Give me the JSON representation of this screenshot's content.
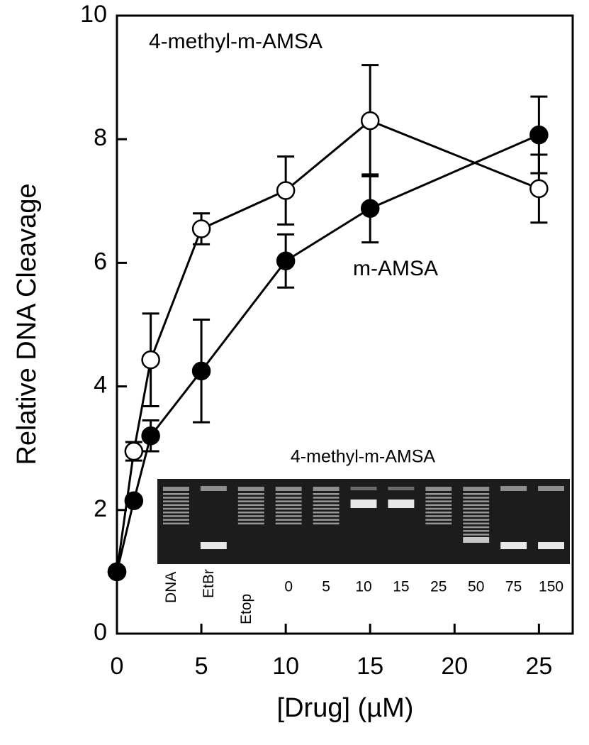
{
  "chart_data": {
    "type": "line",
    "xlabel": "[Drug] (µM)",
    "ylabel": "Relative DNA Cleavage",
    "xlim": [
      0,
      27
    ],
    "ylim": [
      0,
      10
    ],
    "xticks": [
      0,
      5,
      10,
      15,
      20,
      25
    ],
    "yticks": [
      0,
      2,
      4,
      6,
      8,
      10
    ],
    "series": [
      {
        "name": "4-methyl-m-AMSA",
        "marker": "open",
        "color": "#000000",
        "x": [
          0,
          1,
          2,
          5,
          10,
          15,
          25
        ],
        "values": [
          1.0,
          2.95,
          4.43,
          6.55,
          7.17,
          8.3,
          7.2
        ],
        "errors": [
          null,
          0.15,
          0.75,
          0.25,
          0.55,
          0.9,
          0.55
        ]
      },
      {
        "name": "m-AMSA",
        "marker": "filled",
        "color": "#000000",
        "x": [
          0,
          1,
          2,
          5,
          10,
          15,
          25
        ],
        "values": [
          1.0,
          2.15,
          3.2,
          4.25,
          6.03,
          6.88,
          8.07
        ],
        "errors": [
          null,
          null,
          0.25,
          0.83,
          0.43,
          0.55,
          0.62
        ]
      }
    ]
  },
  "inset": {
    "title": "4-methyl-m-AMSA",
    "lanes": [
      "DNA",
      "EtBr",
      "Etop",
      "0",
      "5",
      "10",
      "15",
      "25",
      "50",
      "75",
      "150"
    ]
  }
}
